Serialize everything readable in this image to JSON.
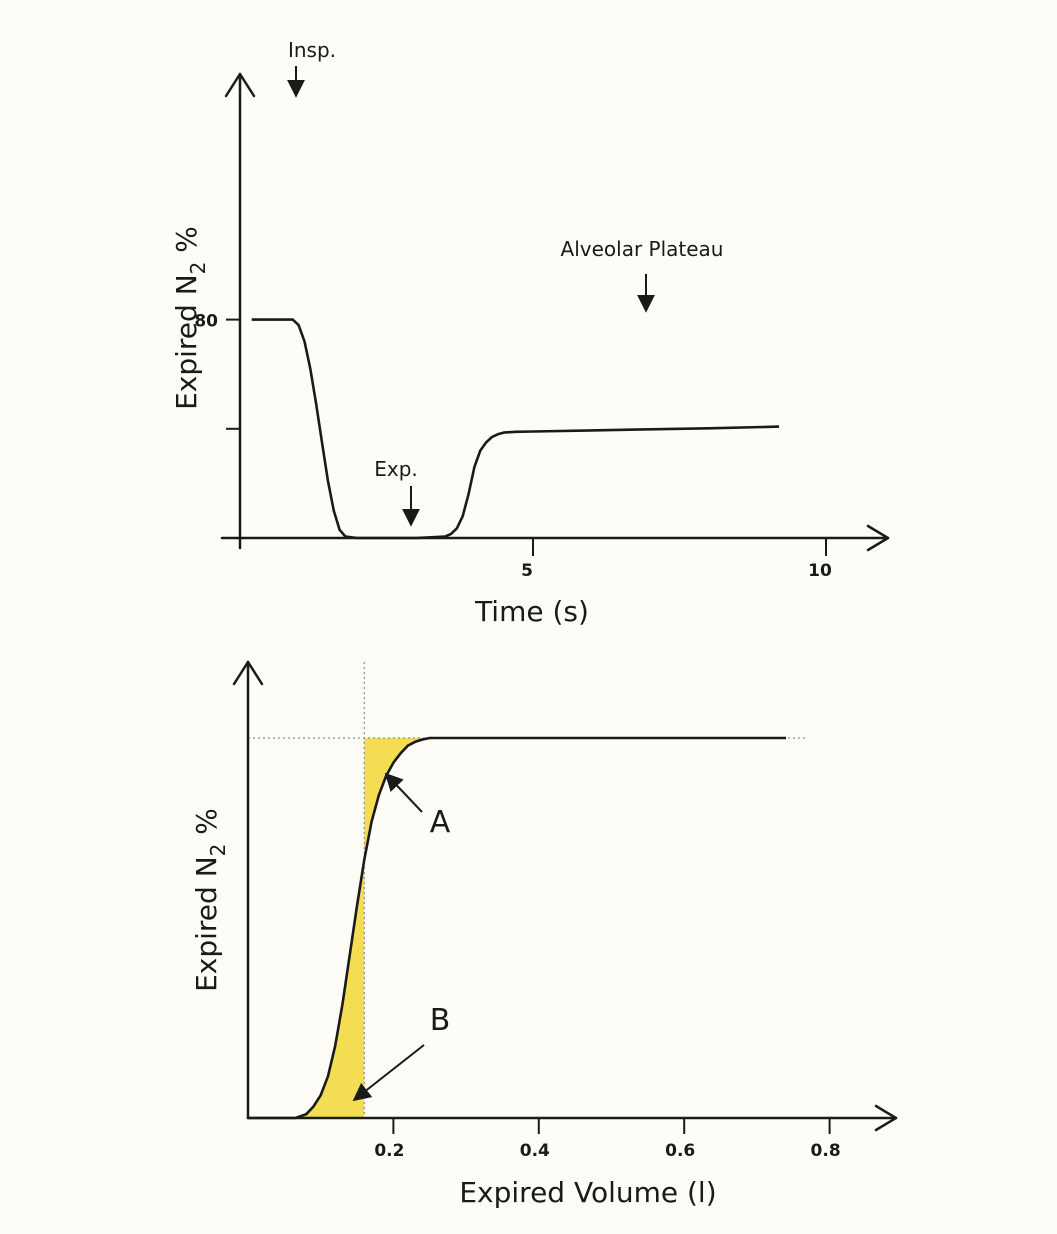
{
  "page": {
    "background": "#fdfcf6"
  },
  "colors": {
    "line": "#1a1a1a",
    "shade": "#f4dd52",
    "guide": "#7f93a8"
  },
  "chart_data": [
    {
      "type": "line",
      "xlabel": "Time (s)",
      "ylabel_main": "Expired N",
      "ylabel_sub": "2",
      "ylabel_tail": " %",
      "xlim": [
        0,
        11
      ],
      "ylim": [
        0,
        80
      ],
      "x_ticks": [
        {
          "value": 5,
          "label": "5"
        },
        {
          "value": 10,
          "label": "10"
        }
      ],
      "y_ticks": [
        {
          "value": 80,
          "label": "80"
        },
        {
          "value": 40,
          "label": ""
        }
      ],
      "series": [
        {
          "x": [
            0.2,
            0.9,
            1.0,
            1.1,
            1.2,
            1.3,
            1.4,
            1.5,
            1.6,
            1.7,
            1.8,
            2.0,
            3.0,
            3.5,
            3.6,
            3.7,
            3.8,
            3.9,
            4.0,
            4.1,
            4.2,
            4.3,
            4.4,
            4.5,
            4.7,
            5.0,
            6.0,
            7.0,
            8.0,
            9.2
          ],
          "y": [
            80,
            80,
            78,
            72,
            62,
            49,
            35,
            21,
            10,
            3,
            0.5,
            0,
            0,
            0.5,
            1.5,
            3.5,
            8,
            16,
            26,
            32,
            35,
            37,
            38,
            38.6,
            38.9,
            39.0,
            39.4,
            39.8,
            40.2,
            40.8
          ]
        }
      ],
      "annotations": [
        {
          "label": "Insp.",
          "x": 0.95,
          "y": 80
        },
        {
          "label": "Exp.",
          "x": 2.9,
          "y": 0
        },
        {
          "label": "Alveolar Plateau",
          "x": 7,
          "y": 40
        }
      ]
    },
    {
      "type": "area",
      "xlabel": "Expired Volume (l)",
      "ylabel_main": "Expired N",
      "ylabel_sub": "2",
      "ylabel_tail": " %",
      "xlim": [
        0,
        0.88
      ],
      "ylim": [
        0,
        100
      ],
      "x_ticks": [
        {
          "value": 0.2,
          "label": "0.2"
        },
        {
          "value": 0.4,
          "label": "0.4"
        },
        {
          "value": 0.6,
          "label": "0.6"
        },
        {
          "value": 0.8,
          "label": "0.8"
        }
      ],
      "series": [
        {
          "x": [
            0,
            0.065,
            0.08,
            0.09,
            0.1,
            0.11,
            0.12,
            0.13,
            0.14,
            0.15,
            0.16,
            0.17,
            0.18,
            0.19,
            0.2,
            0.21,
            0.22,
            0.23,
            0.24,
            0.25,
            0.26,
            0.45,
            0.65,
            0.74
          ],
          "y": [
            0,
            0,
            1,
            3,
            6,
            11,
            19,
            30,
            43,
            56,
            68,
            78,
            85,
            90,
            93.5,
            96,
            98,
            99,
            99.6,
            100,
            100,
            100,
            100,
            100
          ]
        }
      ],
      "guides": {
        "x": 0.16,
        "y": 100
      },
      "shaded_regions": [
        {
          "label": "A",
          "x_range": [
            0.16,
            0.26
          ]
        },
        {
          "label": "B",
          "x_range": [
            0.065,
            0.16
          ]
        }
      ]
    }
  ]
}
